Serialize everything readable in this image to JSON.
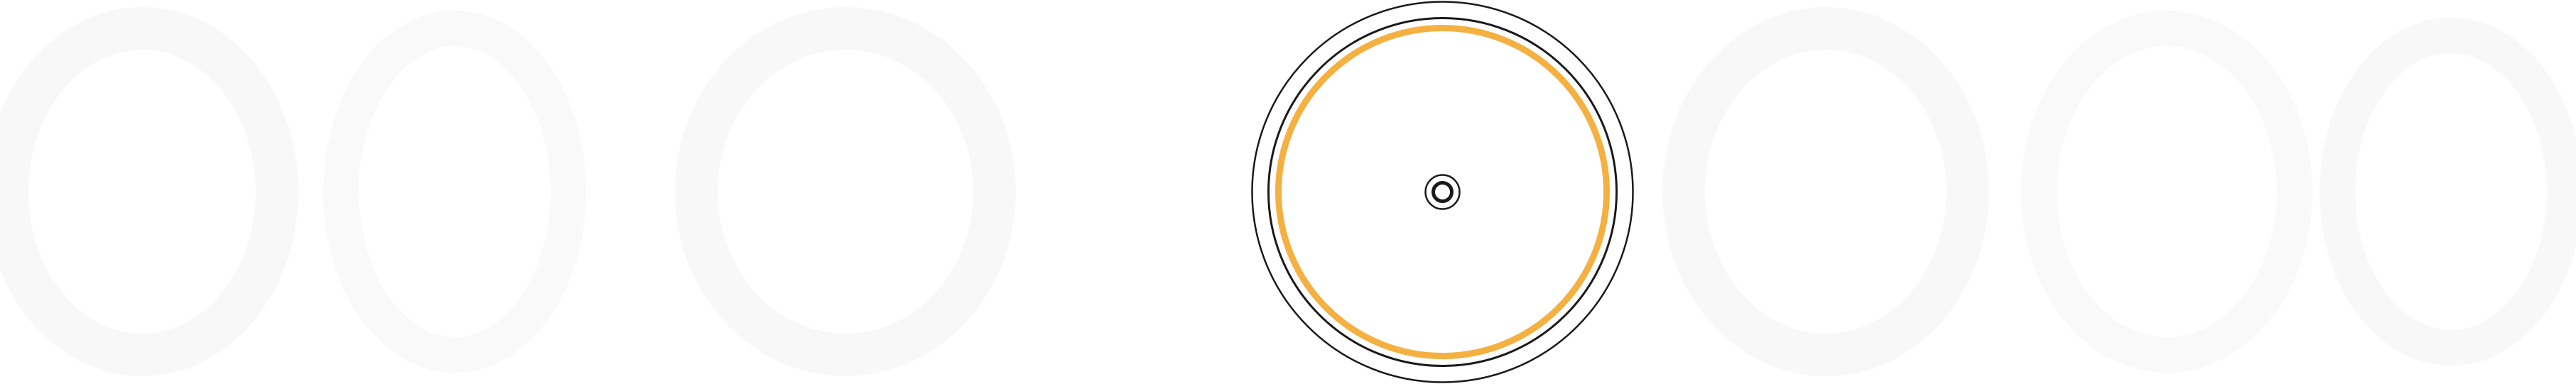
{
  "colors": {
    "background": "#ffffff",
    "ring_stroke": "#1a1a1a",
    "accent_ring": "#f5b042",
    "ghost_shape": "#f7f7f7"
  },
  "icons": {
    "target": "concentric-circles-target-icon"
  }
}
